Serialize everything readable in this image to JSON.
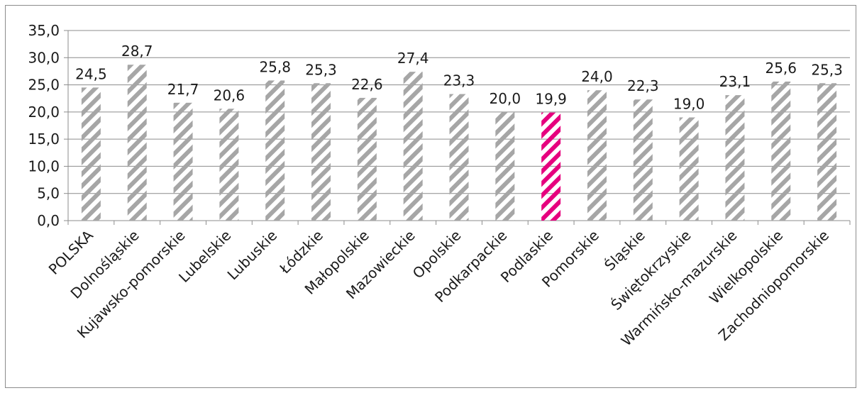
{
  "chart_data": {
    "type": "bar",
    "categories": [
      "POLSKA",
      "Dolnośląskie",
      "Kujawsko-pomorskie",
      "Lubelskie",
      "Lubuskie",
      "Łódzkie",
      "Małopolskie",
      "Mazowieckie",
      "Opolskie",
      "Podkarpackie",
      "Podlaskie",
      "Pomorskie",
      "Śląskie",
      "Świętokrzyskie",
      "Warmińsko-mazurskie",
      "Wielkopolskie",
      "Zachodniopomorskie"
    ],
    "values": [
      24.5,
      28.7,
      21.7,
      20.6,
      25.8,
      25.3,
      22.6,
      27.4,
      23.3,
      20.0,
      19.9,
      24.0,
      22.3,
      19.0,
      23.1,
      25.6,
      25.3
    ],
    "value_labels": [
      "24,5",
      "28,7",
      "21,7",
      "20,6",
      "25,8",
      "25,3",
      "22,6",
      "27,4",
      "23,3",
      "20,0",
      "19,9",
      "24,0",
      "22,3",
      "19,0",
      "23,1",
      "25,6",
      "25,3"
    ],
    "highlight_index": 10,
    "ylim": [
      0,
      35
    ],
    "yticks": [
      0,
      5,
      10,
      15,
      20,
      25,
      30,
      35
    ],
    "ytick_labels": [
      "0,0",
      "5,0",
      "10,0",
      "15,0",
      "20,0",
      "25,0",
      "30,0",
      "35,0"
    ],
    "grid": true,
    "legend": "none",
    "title": "",
    "xlabel": "",
    "ylabel": "",
    "colors": {
      "bar": "#a6a6a6",
      "highlight": "#e6007e",
      "grid": "#8c8c8c",
      "axis": "#8c8c8c"
    },
    "pattern": "diagonal-stripes"
  }
}
